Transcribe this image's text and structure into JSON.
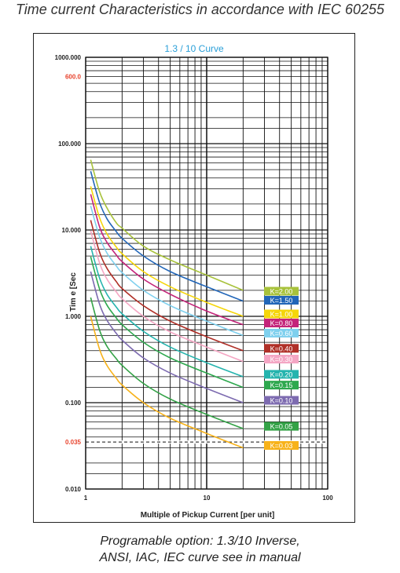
{
  "page": {
    "heading": "Time current Characteristics in accordance with IEC 60255",
    "caption_line1": "Programable option: 1.3/10 Inverse,",
    "caption_line2": "ANSI, IAC, IEC curve see in manual"
  },
  "chart_data": {
    "type": "line",
    "title": "1.3 / 10 Curve",
    "xlabel": "Multiple of Pickup Current [per unit]",
    "ylabel": "Tim e [Sec",
    "x_scale": "log",
    "y_scale": "log",
    "xlim": [
      1,
      100
    ],
    "ylim": [
      0.01,
      1000
    ],
    "x_ticks": [
      {
        "value": 1,
        "label": "1"
      },
      {
        "value": 10,
        "label": "10"
      },
      {
        "value": 100,
        "label": "100"
      }
    ],
    "y_ticks": [
      {
        "value": 1000,
        "label": "1000.000"
      },
      {
        "value": 100,
        "label": "100.000"
      },
      {
        "value": 10,
        "label": "10.000"
      },
      {
        "value": 1,
        "label": "1.000"
      },
      {
        "value": 0.1,
        "label": "0.100"
      },
      {
        "value": 0.01,
        "label": "0.010"
      }
    ],
    "highlight_ticks": [
      {
        "value": 600,
        "label": "600.0",
        "color": "#e8432d"
      },
      {
        "value": 0.035,
        "label": "0.035",
        "color": "#e8432d",
        "dashed_line": true
      }
    ],
    "grid": true,
    "legend_placement": "right, next to curve ends",
    "x": [
      1.1,
      1.3,
      1.5,
      1.8,
      2,
      3,
      5,
      10,
      20
    ],
    "series": [
      {
        "name": "K=2.00",
        "color": "#a8c23b",
        "values": [
          65,
          28,
          18,
          12,
          10.5,
          6.5,
          4.5,
          3.0,
          2.0
        ]
      },
      {
        "name": "K=1.50",
        "color": "#2266b8",
        "values": [
          48,
          21,
          13.5,
          9.5,
          8,
          5.0,
          3.3,
          2.2,
          1.5
        ]
      },
      {
        "name": "K=1.00",
        "color": "#f5d60a",
        "values": [
          32,
          14,
          9,
          6.3,
          5.3,
          3.3,
          2.2,
          1.45,
          1.0
        ]
      },
      {
        "name": "K=0.80",
        "color": "#c4247a",
        "values": [
          26,
          11,
          7.2,
          5.1,
          4.3,
          2.7,
          1.8,
          1.15,
          0.8
        ]
      },
      {
        "name": "K=0.60",
        "color": "#7fd0ee",
        "values": [
          19,
          8.4,
          5.4,
          3.8,
          3.2,
          2.0,
          1.33,
          0.88,
          0.6
        ]
      },
      {
        "name": "K=0.40",
        "color": "#b03028",
        "values": [
          13,
          5.6,
          3.6,
          2.5,
          2.1,
          1.33,
          0.88,
          0.58,
          0.4
        ]
      },
      {
        "name": "K=0.30",
        "color": "#f4a6c4",
        "values": [
          9.8,
          4.2,
          2.7,
          1.9,
          1.6,
          1.0,
          0.66,
          0.44,
          0.3
        ]
      },
      {
        "name": "K=0.20",
        "color": "#25b4ae",
        "values": [
          6.5,
          2.8,
          1.8,
          1.27,
          1.07,
          0.67,
          0.44,
          0.29,
          0.2
        ]
      },
      {
        "name": "K=0.15",
        "color": "#2ea84e",
        "values": [
          4.9,
          2.1,
          1.35,
          0.95,
          0.8,
          0.5,
          0.33,
          0.22,
          0.15
        ]
      },
      {
        "name": "K=0.10",
        "color": "#7d6bb0",
        "values": [
          3.3,
          1.4,
          0.9,
          0.63,
          0.53,
          0.33,
          0.22,
          0.146,
          0.1
        ]
      },
      {
        "name": "K=0.05",
        "color": "#33a246",
        "values": [
          1.65,
          0.7,
          0.45,
          0.32,
          0.27,
          0.167,
          0.11,
          0.073,
          0.05
        ]
      },
      {
        "name": "K=0.03",
        "color": "#f7b21a",
        "values": [
          1.0,
          0.42,
          0.27,
          0.19,
          0.16,
          0.1,
          0.066,
          0.044,
          0.03
        ]
      }
    ]
  }
}
